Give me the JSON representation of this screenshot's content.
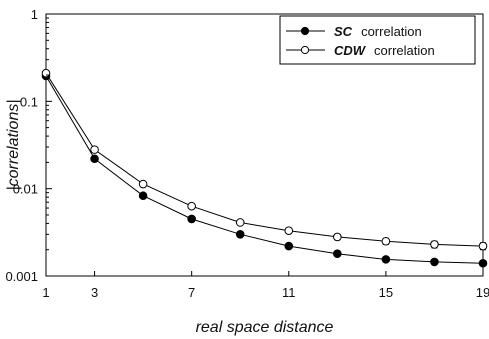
{
  "chart_data": {
    "type": "line",
    "xlabel": "real space distance",
    "ylabel": "|correlations|",
    "xscale": "linear",
    "yscale": "log",
    "xlim": [
      1,
      19
    ],
    "ylim": [
      0.001,
      1
    ],
    "x_ticks": [
      1,
      3,
      7,
      11,
      15,
      19
    ],
    "x_tick_labels": [
      "1",
      "3",
      "7",
      "11",
      "15",
      "19"
    ],
    "y_ticks": [
      0.001,
      0.01,
      0.1,
      1
    ],
    "y_tick_labels": [
      "0.001",
      "0.01",
      "0.1",
      "1"
    ],
    "grid": false,
    "legend_position": "top-right",
    "series": [
      {
        "name_key": "SC",
        "name_suffix": "correlation",
        "marker": "filled-circle",
        "color": "#000000",
        "x": [
          1,
          3,
          5,
          7,
          9,
          11,
          13,
          15,
          17,
          19
        ],
        "y": [
          0.195,
          0.022,
          0.0083,
          0.0045,
          0.003,
          0.0022,
          0.0018,
          0.00155,
          0.00145,
          0.0014
        ]
      },
      {
        "name_key": "CDW",
        "name_suffix": "correlation",
        "marker": "open-circle",
        "color": "#000000",
        "x": [
          1,
          3,
          5,
          7,
          9,
          11,
          13,
          15,
          17,
          19
        ],
        "y": [
          0.21,
          0.028,
          0.0113,
          0.0063,
          0.0041,
          0.0033,
          0.0028,
          0.0025,
          0.0023,
          0.0022
        ],
        "error": [
          0,
          0,
          0,
          0,
          0,
          0.0001,
          0.0002,
          0.0002,
          0.0002,
          0.0002
        ]
      }
    ]
  }
}
